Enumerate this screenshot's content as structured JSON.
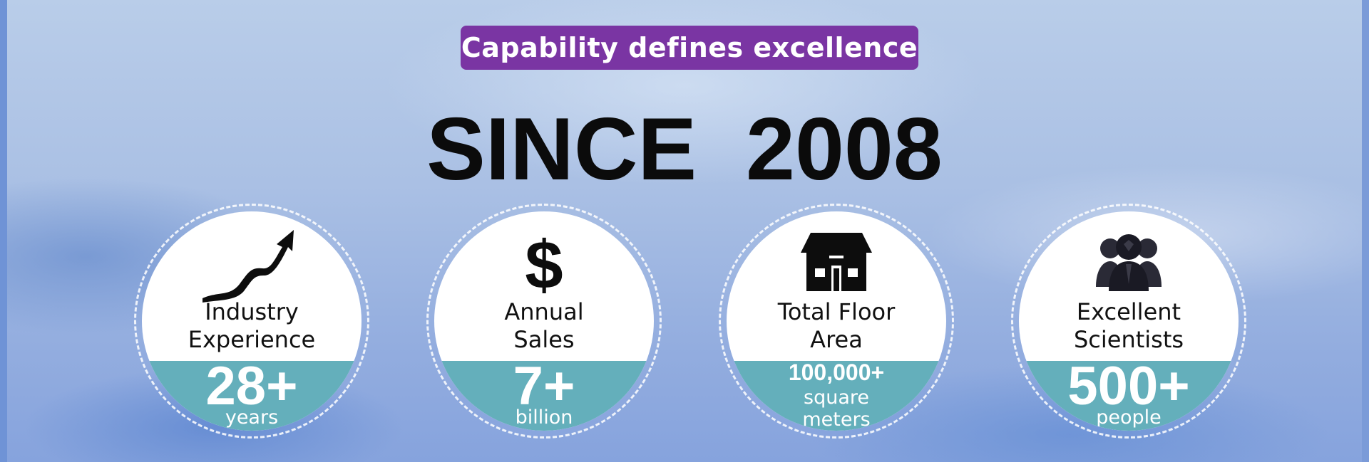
{
  "badge": "Capability defines excellence",
  "headline": "SINCE  2008",
  "stats": [
    {
      "icon": "growth-arrow-icon",
      "label_line1": "Industry",
      "label_line2": "Experience",
      "value": "28+",
      "unit_line1": "years",
      "unit_line2": ""
    },
    {
      "icon": "dollar-icon",
      "label_line1": "Annual",
      "label_line2": "Sales",
      "value": "7+",
      "unit_line1": "billion",
      "unit_line2": ""
    },
    {
      "icon": "building-icon",
      "label_line1": "Total Floor",
      "label_line2": "Area",
      "value": "100,000+",
      "unit_line1": "square",
      "unit_line2": "meters"
    },
    {
      "icon": "scientists-group-icon",
      "label_line1": "Excellent",
      "label_line2": "Scientists",
      "value": "500+",
      "unit_line1": "people",
      "unit_line2": ""
    }
  ],
  "colors": {
    "badge_bg": "#7a35a3",
    "band": "#64afbb",
    "background": "#aac0e4"
  }
}
